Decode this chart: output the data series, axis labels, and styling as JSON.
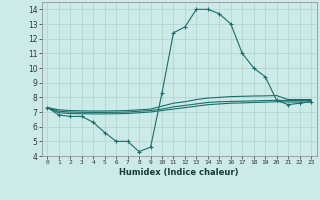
{
  "xlabel": "Humidex (Indice chaleur)",
  "background_color": "#cceae8",
  "grid_color": "#aed4d0",
  "line_color": "#1a6e6a",
  "xlim": [
    -0.5,
    23.5
  ],
  "ylim": [
    4,
    14.5
  ],
  "xticks": [
    0,
    1,
    2,
    3,
    4,
    5,
    6,
    7,
    8,
    9,
    10,
    11,
    12,
    13,
    14,
    15,
    16,
    17,
    18,
    19,
    20,
    21,
    22,
    23
  ],
  "yticks": [
    4,
    5,
    6,
    7,
    8,
    9,
    10,
    11,
    12,
    13,
    14
  ],
  "series": [
    {
      "x": [
        0,
        1,
        2,
        3,
        4,
        5,
        6,
        7,
        8,
        9,
        10,
        11,
        12,
        13,
        14,
        15,
        16,
        17,
        18,
        19,
        20,
        21,
        22,
        23
      ],
      "y": [
        7.3,
        6.8,
        6.7,
        6.7,
        6.3,
        5.6,
        5.0,
        5.0,
        4.3,
        4.6,
        8.3,
        12.4,
        12.8,
        14.0,
        14.0,
        13.7,
        13.0,
        11.0,
        10.0,
        9.4,
        7.8,
        7.5,
        7.6,
        7.7
      ],
      "marker": true
    },
    {
      "x": [
        0,
        1,
        2,
        3,
        4,
        5,
        6,
        7,
        8,
        9,
        10,
        11,
        12,
        13,
        14,
        15,
        16,
        17,
        18,
        19,
        20,
        21,
        22,
        23
      ],
      "y": [
        7.3,
        6.95,
        6.9,
        6.88,
        6.87,
        6.87,
        6.88,
        6.9,
        6.95,
        7.0,
        7.1,
        7.2,
        7.3,
        7.4,
        7.5,
        7.55,
        7.6,
        7.62,
        7.65,
        7.67,
        7.7,
        7.68,
        7.68,
        7.68
      ],
      "marker": false
    },
    {
      "x": [
        0,
        1,
        2,
        3,
        4,
        5,
        6,
        7,
        8,
        9,
        10,
        11,
        12,
        13,
        14,
        15,
        16,
        17,
        18,
        19,
        20,
        21,
        22,
        23
      ],
      "y": [
        7.3,
        7.05,
        7.0,
        6.98,
        6.97,
        6.97,
        6.98,
        7.0,
        7.05,
        7.1,
        7.2,
        7.35,
        7.45,
        7.55,
        7.65,
        7.7,
        7.72,
        7.74,
        7.76,
        7.78,
        7.8,
        7.78,
        7.78,
        7.78
      ],
      "marker": false
    },
    {
      "x": [
        0,
        1,
        2,
        3,
        4,
        5,
        6,
        7,
        8,
        9,
        10,
        11,
        12,
        13,
        14,
        15,
        16,
        17,
        18,
        19,
        20,
        21,
        22,
        23
      ],
      "y": [
        7.3,
        7.15,
        7.1,
        7.08,
        7.07,
        7.07,
        7.08,
        7.1,
        7.15,
        7.2,
        7.4,
        7.6,
        7.7,
        7.85,
        7.95,
        8.0,
        8.05,
        8.07,
        8.09,
        8.1,
        8.12,
        7.85,
        7.85,
        7.85
      ],
      "marker": false
    }
  ]
}
